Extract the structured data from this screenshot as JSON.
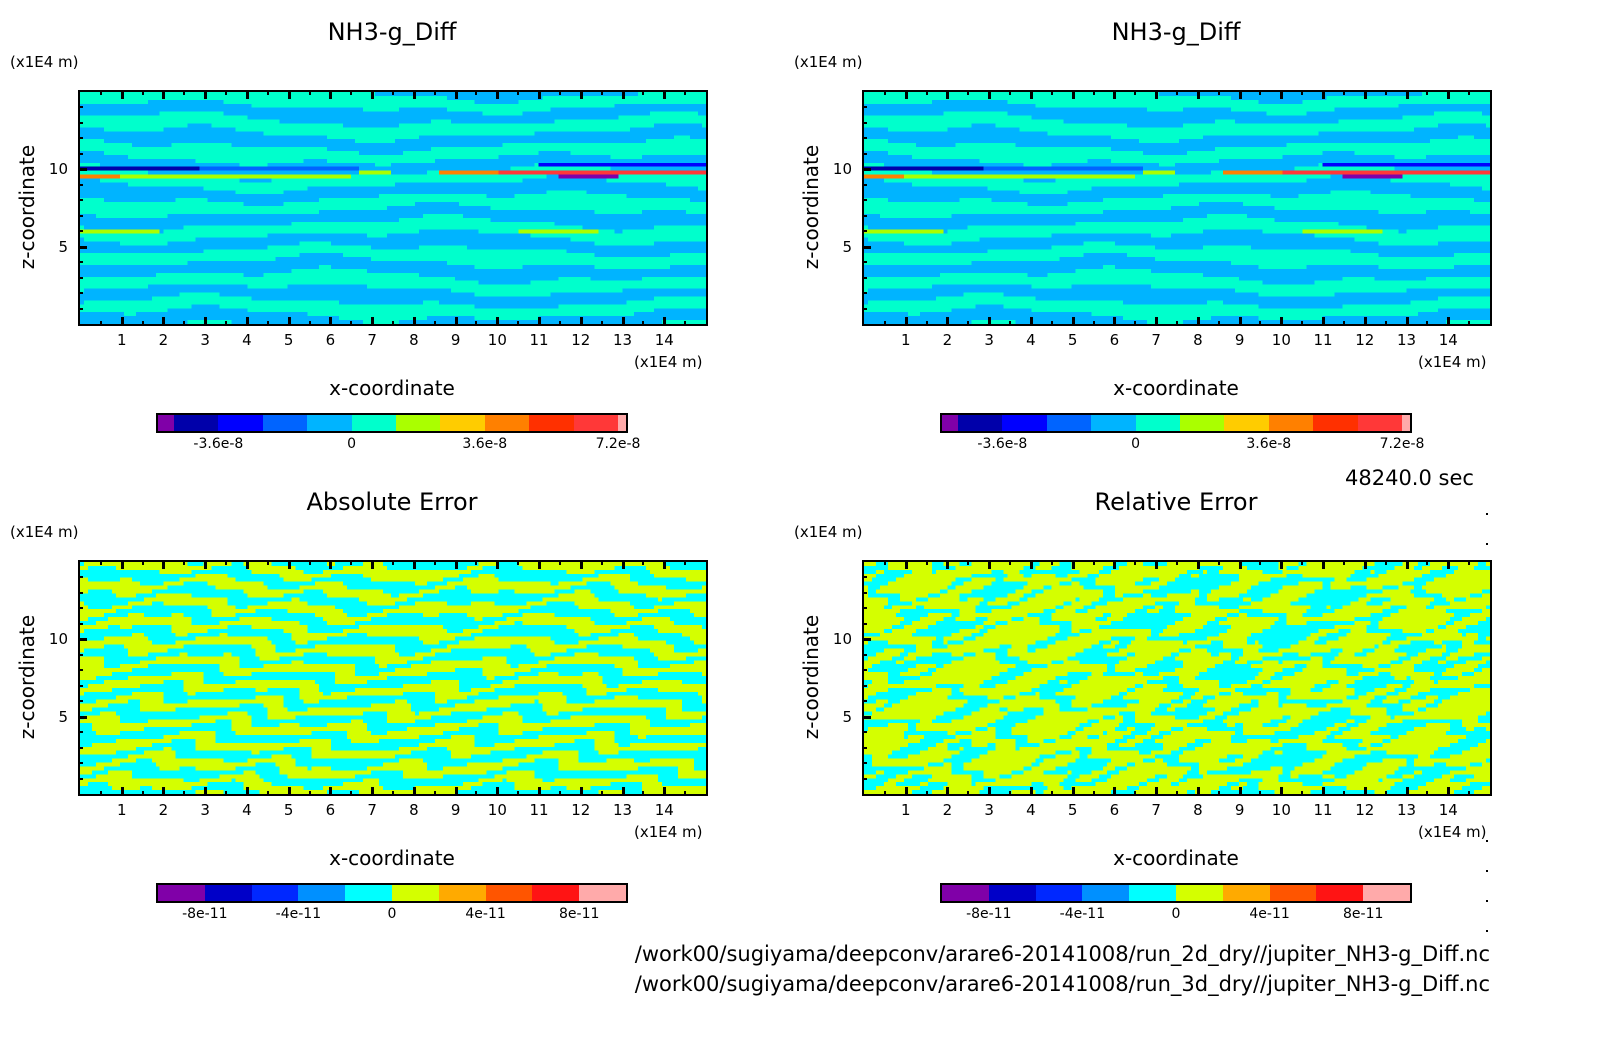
{
  "time_label": "48240.0 sec",
  "file_paths": [
    "/work00/sugiyama/deepconv/arare6-20141008/run_2d_dry//jupiter_NH3-g_Diff.nc",
    "/work00/sugiyama/deepconv/arare6-20141008/run_3d_dry//jupiter_NH3-g_Diff.nc"
  ],
  "chart_data": [
    {
      "type": "heatmap",
      "title": "NH3-g_Diff",
      "xlabel": "x-coordinate",
      "ylabel": "z-coordinate",
      "x_unit": "(x1E4 m)",
      "y_unit": "(x1E4 m)",
      "xlim": [
        0,
        15
      ],
      "ylim": [
        0,
        15
      ],
      "x_ticks": [
        "1",
        "2",
        "3",
        "4",
        "5",
        "6",
        "7",
        "8",
        "9",
        "10",
        "11",
        "12",
        "13",
        "14"
      ],
      "y_ticks": [
        "5",
        "10"
      ],
      "colorbar": {
        "colors": [
          "#8000a8",
          "#0000aa",
          "#0000ff",
          "#0064ff",
          "#00b4ff",
          "#00ffcc",
          "#aaff00",
          "#ffcc00",
          "#ff8000",
          "#ff3000",
          "#ff3838",
          "#ffaaaa"
        ],
        "labels": [
          "-3.6e-8",
          "0",
          "3.6e-8",
          "7.2e-8"
        ],
        "label_values": [
          -3.6e-08,
          0,
          3.6e-08,
          7.2e-08
        ],
        "interval": 1.2e-08
      },
      "field": "diff"
    },
    {
      "type": "heatmap",
      "title": "NH3-g_Diff",
      "xlabel": "x-coordinate",
      "ylabel": "z-coordinate",
      "x_unit": "(x1E4 m)",
      "y_unit": "(x1E4 m)",
      "xlim": [
        0,
        15
      ],
      "ylim": [
        0,
        15
      ],
      "x_ticks": [
        "1",
        "2",
        "3",
        "4",
        "5",
        "6",
        "7",
        "8",
        "9",
        "10",
        "11",
        "12",
        "13",
        "14"
      ],
      "y_ticks": [
        "5",
        "10"
      ],
      "colorbar": {
        "colors": [
          "#8000a8",
          "#0000aa",
          "#0000ff",
          "#0064ff",
          "#00b4ff",
          "#00ffcc",
          "#aaff00",
          "#ffcc00",
          "#ff8000",
          "#ff3000",
          "#ff3838",
          "#ffaaaa"
        ],
        "labels": [
          "-3.6e-8",
          "0",
          "3.6e-8",
          "7.2e-8"
        ],
        "label_values": [
          -3.6e-08,
          0,
          3.6e-08,
          7.2e-08
        ],
        "interval": 1.2e-08
      },
      "field": "diff"
    },
    {
      "type": "heatmap",
      "title": "Absolute Error",
      "xlabel": "x-coordinate",
      "ylabel": "z-coordinate",
      "x_unit": "(x1E4 m)",
      "y_unit": "(x1E4 m)",
      "xlim": [
        0,
        15
      ],
      "ylim": [
        0,
        15
      ],
      "x_ticks": [
        "1",
        "2",
        "3",
        "4",
        "5",
        "6",
        "7",
        "8",
        "9",
        "10",
        "11",
        "12",
        "13",
        "14"
      ],
      "y_ticks": [
        "5",
        "10"
      ],
      "colorbar": {
        "colors": [
          "#8000a8",
          "#0000c8",
          "#0028ff",
          "#0090ff",
          "#00ffff",
          "#d4ff00",
          "#ffaa00",
          "#ff5500",
          "#ff1414",
          "#ffaaaa"
        ],
        "labels": [
          "-8e-11",
          "-4e-11",
          "0",
          "4e-11",
          "8e-11"
        ],
        "label_values": [
          -8e-11,
          -4e-11,
          0,
          4e-11,
          8e-11
        ],
        "interval": 2e-11
      },
      "field": "abs"
    },
    {
      "type": "heatmap",
      "title": "Relative Error",
      "xlabel": "x-coordinate",
      "ylabel": "z-coordinate",
      "x_unit": "(x1E4 m)",
      "y_unit": "(x1E4 m)",
      "xlim": [
        0,
        15
      ],
      "ylim": [
        0,
        15
      ],
      "x_ticks": [
        "1",
        "2",
        "3",
        "4",
        "5",
        "6",
        "7",
        "8",
        "9",
        "10",
        "11",
        "12",
        "13",
        "14"
      ],
      "y_ticks": [
        "5",
        "10"
      ],
      "colorbar": {
        "colors": [
          "#8000a8",
          "#0000c8",
          "#0028ff",
          "#0090ff",
          "#00ffff",
          "#d4ff00",
          "#ffaa00",
          "#ff5500",
          "#ff1414",
          "#ffaaaa"
        ],
        "labels": [
          "-8e-11",
          "-4e-11",
          "0",
          "4e-11",
          "8e-11"
        ],
        "label_values": [
          -8e-11,
          -4e-11,
          0,
          4e-11,
          8e-11
        ],
        "interval": 2e-11
      },
      "field": "rel"
    }
  ]
}
